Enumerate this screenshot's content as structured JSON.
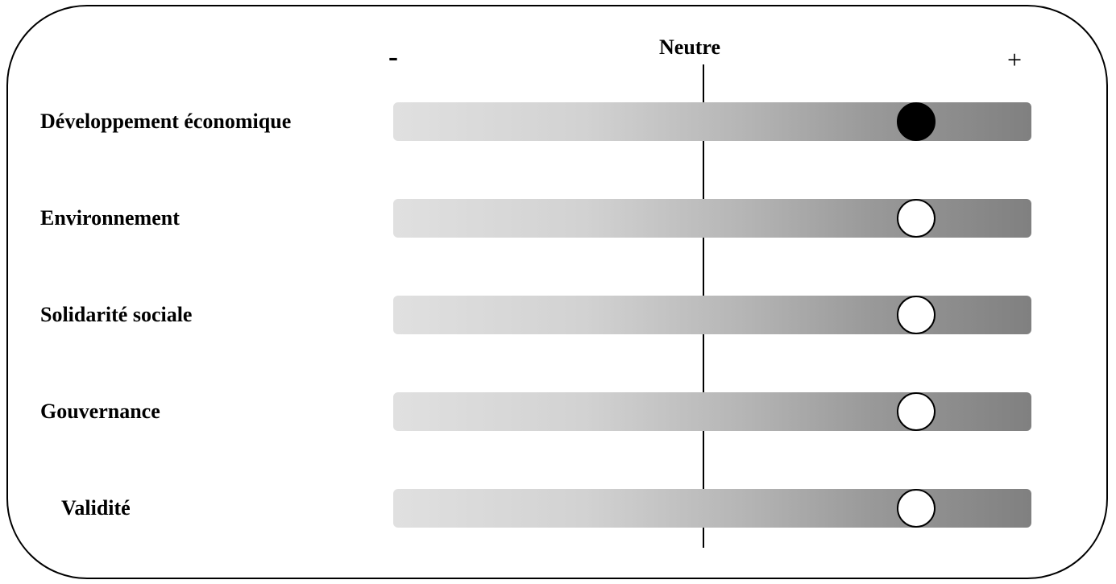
{
  "scale": {
    "negative_label": "-",
    "neutral_label": "Neutre",
    "positive_label": "+"
  },
  "rows": [
    {
      "label": "Développement économique",
      "value": 0.82,
      "marker": "filled"
    },
    {
      "label": "Environnement",
      "value": 0.82,
      "marker": "hollow"
    },
    {
      "label": "Solidarité sociale",
      "value": 0.82,
      "marker": "hollow"
    },
    {
      "label": "Gouvernance",
      "value": 0.82,
      "marker": "hollow"
    },
    {
      "label": "Validité",
      "value": 0.82,
      "marker": "hollow"
    }
  ],
  "colors": {
    "bar_light": "#e0e0e0",
    "bar_dark": "#808080",
    "marker_filled": "#000000",
    "marker_hollow": "#ffffff"
  }
}
